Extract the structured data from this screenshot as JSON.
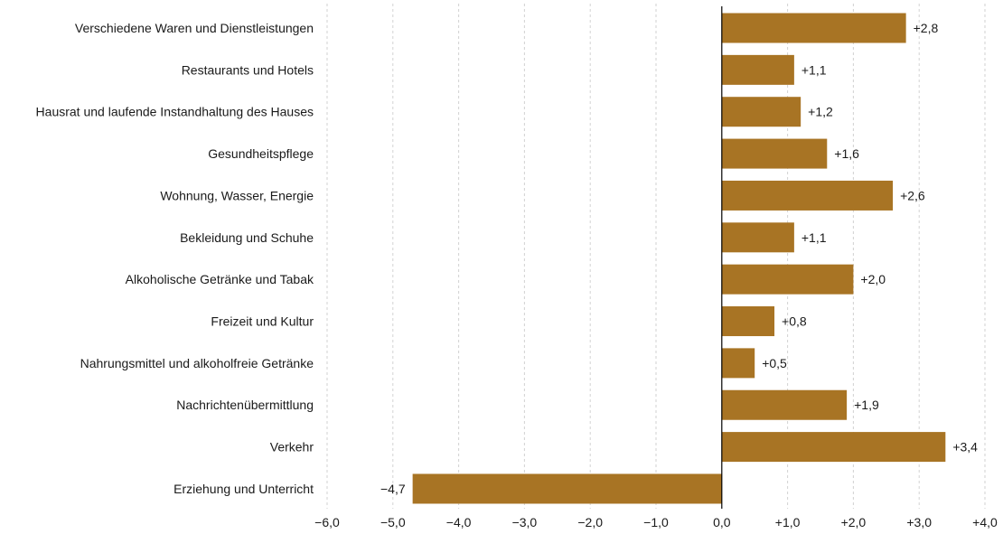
{
  "chart_data": {
    "type": "bar",
    "orientation": "horizontal",
    "categories": [
      "Verschiedene Waren und Dienstleistungen",
      "Restaurants und Hotels",
      "Hausrat und laufende Instandhaltung des Hauses",
      "Gesundheitspflege",
      "Wohnung, Wasser, Energie",
      "Bekleidung und Schuhe",
      "Alkoholische Getränke und Tabak",
      "Freizeit und Kultur",
      "Nahrungsmittel und alkoholfreie Getränke",
      "Nachrichtenübermittlung",
      "Verkehr",
      "Erziehung und Unterricht"
    ],
    "values": [
      2.8,
      1.1,
      1.2,
      1.6,
      2.6,
      1.1,
      2.0,
      0.8,
      0.5,
      1.9,
      3.4,
      -4.7
    ],
    "value_labels": [
      "+2,8",
      "+1,1",
      "+1,2",
      "+1,6",
      "+2,6",
      "+1,1",
      "+2,0",
      "+0,8",
      "+0,5",
      "+1,9",
      "+3,4",
      "−4,7"
    ],
    "xlim": [
      -6,
      4
    ],
    "xticks": [
      -6,
      -5,
      -4,
      -3,
      -2,
      -1,
      0,
      1,
      2,
      3,
      4
    ],
    "xtick_labels": [
      "−6,0",
      "−5,0",
      "−4,0",
      "−3,0",
      "−2,0",
      "−1,0",
      "0,0",
      "+1,0",
      "+2,0",
      "+3,0",
      "+4,0"
    ],
    "grid": "vertical dashed",
    "bar_color": "#a87424",
    "title": "",
    "xlabel": "",
    "ylabel": ""
  }
}
